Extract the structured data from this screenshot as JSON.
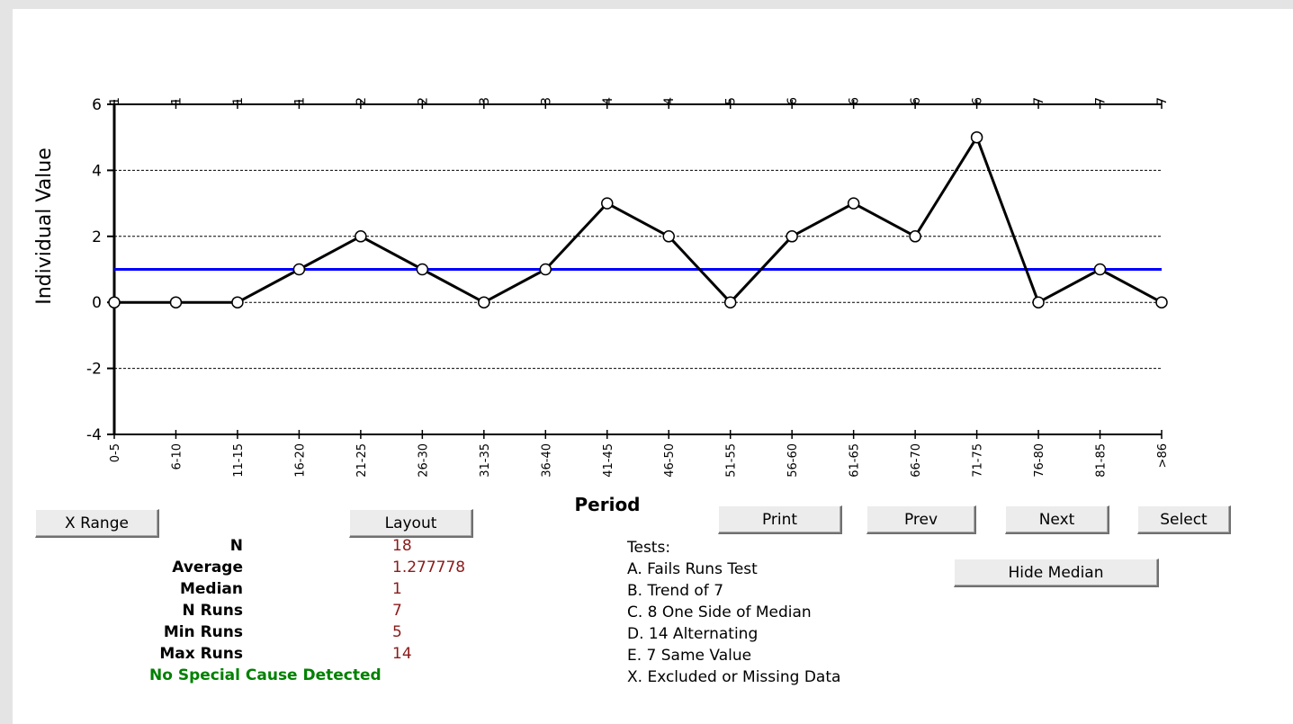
{
  "chart_data": {
    "type": "line",
    "title": "",
    "xlabel": "Period",
    "ylabel": "Individual Value",
    "ylim": [
      -4,
      6
    ],
    "yticks": [
      6,
      4,
      2,
      0,
      -2,
      -4
    ],
    "gridlines": [
      4,
      2,
      0,
      -2
    ],
    "grid": "horizontal dashed",
    "categories": [
      "0-5",
      "6-10",
      "11-15",
      "16-20",
      "21-25",
      "26-30",
      "31-35",
      "36-40",
      "41-45",
      "46-50",
      "51-55",
      "56-60",
      "61-65",
      "66-70",
      "71-75",
      "76-80",
      "81-85",
      ">86"
    ],
    "values": [
      0,
      0,
      0,
      1,
      2,
      1,
      0,
      1,
      3,
      2,
      0,
      2,
      3,
      2,
      5,
      0,
      1,
      0
    ],
    "run_numbers": [
      1,
      1,
      1,
      1,
      2,
      2,
      3,
      3,
      4,
      4,
      5,
      6,
      6,
      6,
      6,
      7,
      7,
      7
    ],
    "median": 1,
    "colors": {
      "line": "#000000",
      "median": "#0000ff",
      "marker_fill": "#ffffff"
    }
  },
  "buttons": {
    "xrange": "X Range",
    "layout": "Layout",
    "print": "Print",
    "prev": "Prev",
    "next": "Next",
    "select": "Select",
    "hide_median": "Hide Median"
  },
  "stats": [
    {
      "label": "N",
      "value": "18"
    },
    {
      "label": "Average",
      "value": "1.277778"
    },
    {
      "label": "Median",
      "value": "1"
    },
    {
      "label": "N Runs",
      "value": "7"
    },
    {
      "label": "Min Runs",
      "value": "5"
    },
    {
      "label": "Max Runs",
      "value": "14"
    }
  ],
  "conclusion": "No Special Cause Detected",
  "tests": {
    "heading": "Tests:",
    "items": [
      "A.  Fails Runs Test",
      "B.  Trend of 7",
      "C.  8 One Side of Median",
      "D.  14 Alternating",
      "E.  7 Same Value",
      "X.  Excluded or Missing Data"
    ]
  },
  "colors": {
    "stat_value": "#8b1a1a",
    "conclusion": "#008000"
  }
}
